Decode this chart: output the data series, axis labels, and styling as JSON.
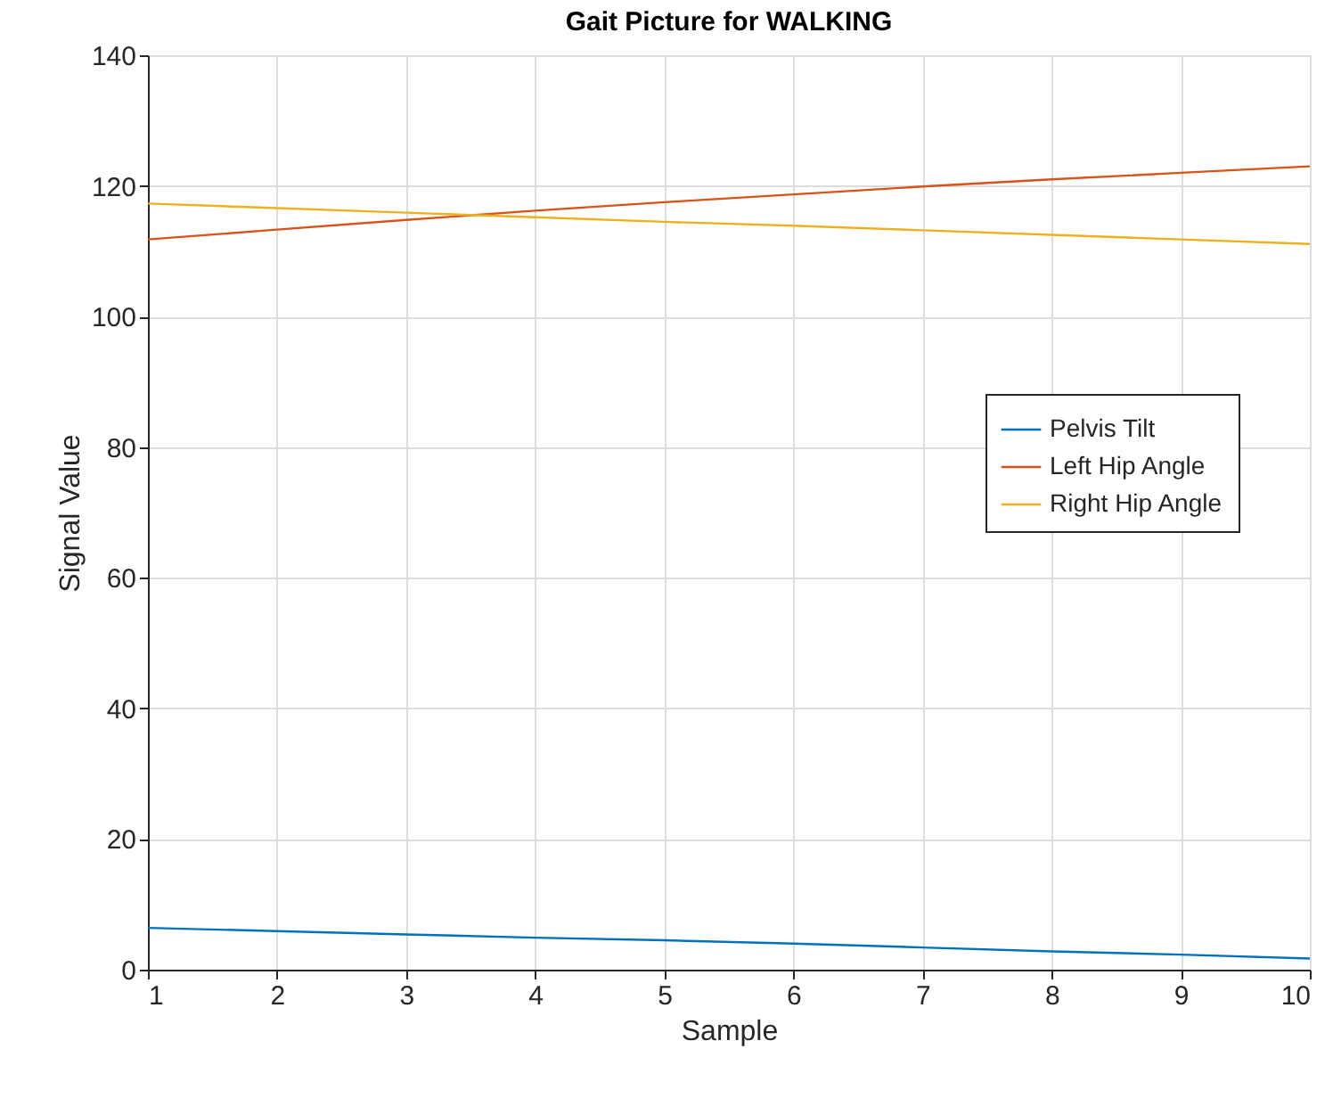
{
  "chart_data": {
    "type": "line",
    "title": "Gait Picture for WALKING",
    "xlabel": "Sample",
    "ylabel": "Signal Value",
    "x": [
      1,
      2,
      3,
      4,
      5,
      6,
      7,
      8,
      9,
      10
    ],
    "series": [
      {
        "name": "Pelvis Tilt",
        "color": "#0072bd",
        "values": [
          6.4,
          5.9,
          5.4,
          4.9,
          4.5,
          4.0,
          3.4,
          2.8,
          2.3,
          1.7
        ]
      },
      {
        "name": "Left Hip Angle",
        "color": "#d95319",
        "values": [
          111.8,
          113.3,
          114.8,
          116.2,
          117.5,
          118.7,
          119.9,
          121.0,
          122.0,
          123.0
        ]
      },
      {
        "name": "Right Hip Angle",
        "color": "#edb120",
        "values": [
          117.3,
          116.6,
          115.9,
          115.2,
          114.5,
          113.9,
          113.2,
          112.5,
          111.8,
          111.1
        ]
      }
    ],
    "xlim": [
      1,
      10
    ],
    "xticks": [
      1,
      2,
      3,
      4,
      5,
      6,
      7,
      8,
      9,
      10
    ],
    "ylim": [
      0,
      140
    ],
    "yticks": [
      0,
      20,
      40,
      60,
      80,
      100,
      120,
      140
    ],
    "grid": true,
    "legend": "right",
    "marker": "none",
    "line_style": "solid"
  }
}
